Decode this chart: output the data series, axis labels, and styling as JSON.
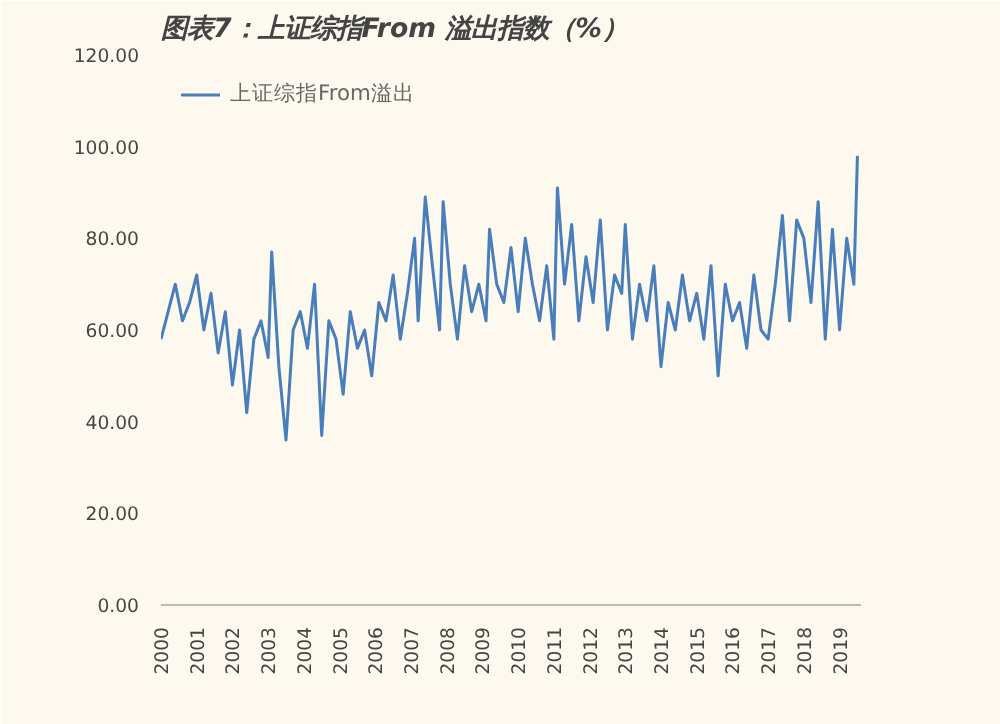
{
  "chart_data": {
    "type": "line",
    "title": "图表7：上证综指From 溢出指数（%）",
    "x": [
      2000.0,
      2000.2,
      2000.4,
      2000.6,
      2000.8,
      2001.0,
      2001.2,
      2001.4,
      2001.6,
      2001.8,
      2002.0,
      2002.2,
      2002.4,
      2002.6,
      2002.8,
      2003.0,
      2003.1,
      2003.3,
      2003.5,
      2003.7,
      2003.9,
      2004.1,
      2004.3,
      2004.5,
      2004.7,
      2004.9,
      2005.1,
      2005.3,
      2005.5,
      2005.7,
      2005.9,
      2006.1,
      2006.3,
      2006.5,
      2006.7,
      2006.9,
      2007.1,
      2007.2,
      2007.4,
      2007.6,
      2007.8,
      2007.9,
      2008.1,
      2008.3,
      2008.5,
      2008.7,
      2008.9,
      2009.1,
      2009.2,
      2009.4,
      2009.6,
      2009.8,
      2010.0,
      2010.2,
      2010.4,
      2010.6,
      2010.8,
      2011.0,
      2011.1,
      2011.3,
      2011.5,
      2011.7,
      2011.9,
      2012.1,
      2012.3,
      2012.5,
      2012.7,
      2012.9,
      2013.0,
      2013.2,
      2013.4,
      2013.6,
      2013.8,
      2014.0,
      2014.2,
      2014.4,
      2014.6,
      2014.8,
      2015.0,
      2015.2,
      2015.4,
      2015.6,
      2015.8,
      2016.0,
      2016.2,
      2016.4,
      2016.6,
      2016.8,
      2017.0,
      2017.2,
      2017.4,
      2017.6,
      2017.8,
      2018.0,
      2018.2,
      2018.4,
      2018.6,
      2018.8,
      2019.0,
      2019.2,
      2019.4,
      2019.5
    ],
    "series": [
      {
        "name": "上证综指From溢出",
        "color": "#4a7ebb",
        "values": [
          58,
          64,
          70,
          62,
          66,
          72,
          60,
          68,
          55,
          64,
          48,
          60,
          42,
          58,
          62,
          54,
          77,
          52,
          36,
          60,
          64,
          56,
          70,
          37,
          62,
          58,
          46,
          64,
          56,
          60,
          50,
          66,
          62,
          72,
          58,
          68,
          80,
          62,
          89,
          74,
          60,
          88,
          70,
          58,
          74,
          64,
          70,
          62,
          82,
          70,
          66,
          78,
          64,
          80,
          70,
          62,
          74,
          58,
          91,
          70,
          83,
          62,
          76,
          66,
          84,
          60,
          72,
          68,
          83,
          58,
          70,
          62,
          74,
          52,
          66,
          60,
          72,
          62,
          68,
          58,
          74,
          50,
          70,
          62,
          66,
          56,
          72,
          60,
          58,
          70,
          85,
          62,
          84,
          80,
          66,
          88,
          58,
          82,
          60,
          80,
          70,
          98
        ]
      }
    ],
    "xlim": [
      2000,
      2019.6
    ],
    "xticks": [
      2000,
      2001,
      2002,
      2003,
      2004,
      2005,
      2006,
      2007,
      2008,
      2009,
      2010,
      2011,
      2012,
      2013,
      2014,
      2015,
      2016,
      2017,
      2018,
      2019
    ],
    "ylim": [
      0,
      120
    ],
    "yticks": [
      {
        "value": 0,
        "label": "0.00"
      },
      {
        "value": 20,
        "label": "20.00"
      },
      {
        "value": 40,
        "label": "40.00"
      },
      {
        "value": 60,
        "label": "60.00"
      },
      {
        "value": 80,
        "label": "80.00"
      },
      {
        "value": 100,
        "label": "100.00"
      },
      {
        "value": 120,
        "label": "120.00"
      }
    ],
    "legend": "top left",
    "grid": false
  }
}
